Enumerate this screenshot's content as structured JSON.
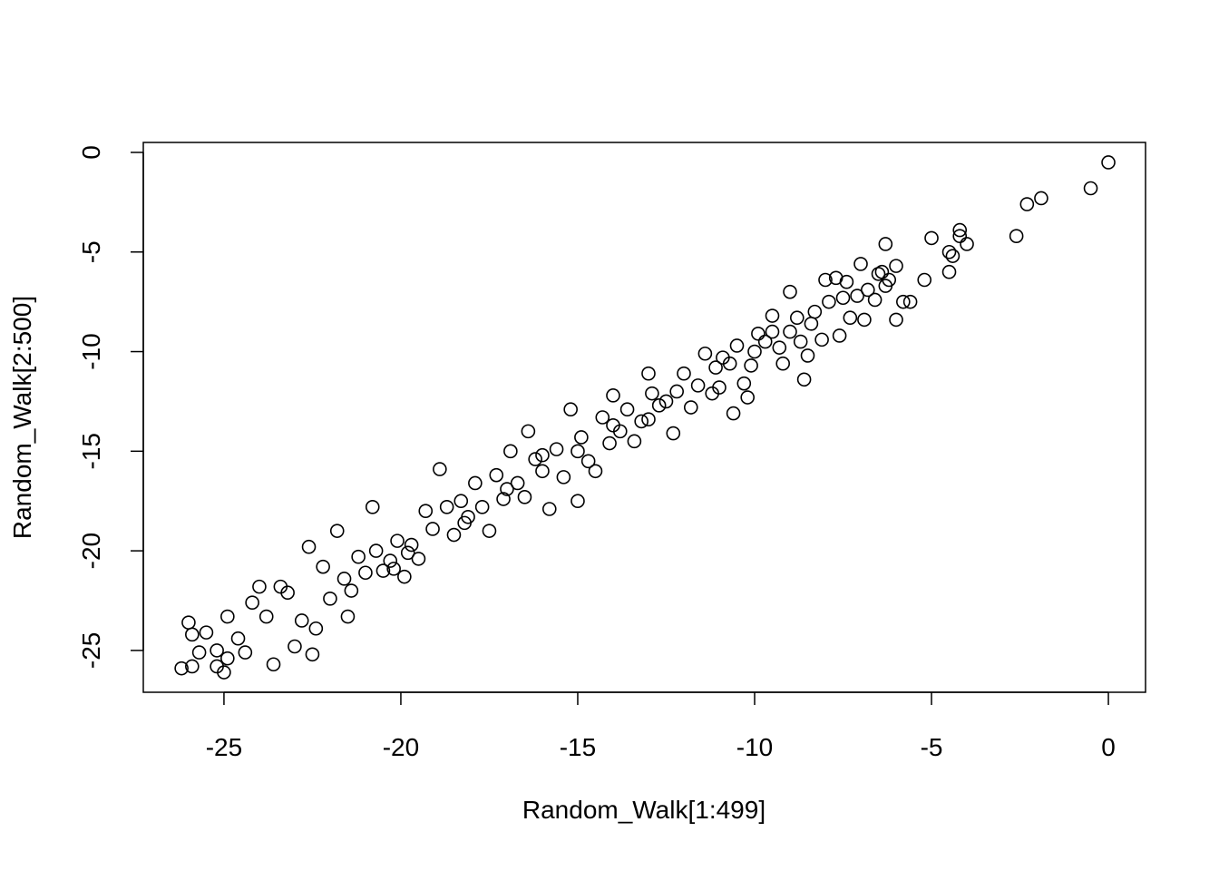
{
  "chart_data": {
    "type": "scatter",
    "xlabel": "Random_Walk[1:499]",
    "ylabel": "Random_Walk[2:500]",
    "xlim": [
      -27.28,
      1.05
    ],
    "ylim": [
      -27.1,
      0.5
    ],
    "xticks": [
      -25,
      -20,
      -15,
      -10,
      -5,
      0
    ],
    "yticks": [
      0,
      -5,
      -10,
      -15,
      -20,
      -25
    ],
    "color": "#000000",
    "x": [
      0,
      -0.5,
      -1.9,
      -2.3,
      -2.6,
      -4,
      -4.2,
      -4.2,
      -4.4,
      -4.5,
      -4.5,
      -5,
      -5.2,
      -5.6,
      -5.8,
      -6,
      -6,
      -6.2,
      -6.3,
      -6.3,
      -6.4,
      -6.5,
      -6.6,
      -6.8,
      -6.9,
      -7,
      -7.1,
      -7.3,
      -7.4,
      -7.5,
      -7.6,
      -7.7,
      -7.9,
      -8,
      -8.1,
      -8.3,
      -8.4,
      -8.5,
      -8.6,
      -8.7,
      -8.8,
      -9,
      -9,
      -9.2,
      -9.3,
      -9.5,
      -9.7,
      -9.9,
      -10.1,
      -10.2,
      -10.3,
      -10.5,
      -10.6,
      -10.7,
      -10.9,
      -11.1,
      -11.2,
      -11.4,
      -11.6,
      -11.8,
      -12,
      -12.2,
      -12.3,
      -12.5,
      -12.7,
      -12.9,
      -13,
      -13.2,
      -13.4,
      -13.6,
      -13.8,
      -14,
      -14.1,
      -14.3,
      -14.5,
      -14.7,
      -14.9,
      -15,
      -15.2,
      -15.4,
      -15.6,
      -15.8,
      -16,
      -16.2,
      -16.4,
      -16.5,
      -16.7,
      -16.9,
      -17.1,
      -17.3,
      -17.5,
      -17.7,
      -17.9,
      -18.1,
      -18.3,
      -18.5,
      -18.7,
      -18.9,
      -19.1,
      -19.3,
      -19.5,
      -19.7,
      -19.9,
      -20.1,
      -20.3,
      -20.5,
      -20.7,
      -20.8,
      -21,
      -21.2,
      -21.4,
      -21.6,
      -21.8,
      -22,
      -22.2,
      -22.4,
      -22.5,
      -22.6,
      -22.8,
      -23,
      -23.2,
      -23.4,
      -23.6,
      -23.8,
      -24,
      -24.2,
      -24.4,
      -24.6,
      -24.9,
      -25.2,
      -25.5,
      -25.7,
      -25.9,
      -26,
      -26.2,
      -25,
      -24.9,
      -25.9,
      -25.2,
      -21.5,
      -20.2,
      -19.8,
      -18.2,
      -17,
      -16,
      -15,
      -14,
      -13,
      -11,
      -10,
      -9.5
    ],
    "y": [
      -0.5,
      -1.8,
      -2.3,
      -2.6,
      -4.2,
      -4.6,
      -4.2,
      -3.9,
      -5.2,
      -5,
      -6,
      -4.3,
      -6.4,
      -7.5,
      -7.5,
      -8.4,
      -5.7,
      -6.4,
      -6.7,
      -4.6,
      -6,
      -6.1,
      -7.4,
      -6.9,
      -8.4,
      -5.6,
      -7.2,
      -8.3,
      -6.5,
      -7.3,
      -9.2,
      -6.3,
      -7.5,
      -6.4,
      -9.4,
      -8,
      -8.6,
      -10.2,
      -11.4,
      -9.5,
      -8.3,
      -7,
      -9,
      -10.6,
      -9.8,
      -8.2,
      -9.5,
      -9.1,
      -10.7,
      -12.3,
      -11.6,
      -9.7,
      -13.1,
      -10.6,
      -10.3,
      -10.8,
      -12.1,
      -10.1,
      -11.7,
      -12.8,
      -11.1,
      -12,
      -14.1,
      -12.5,
      -12.7,
      -12.1,
      -11.1,
      -13.5,
      -14.5,
      -12.9,
      -14,
      -12.2,
      -14.6,
      -13.3,
      -16,
      -15.5,
      -14.3,
      -17.5,
      -12.9,
      -16.3,
      -14.9,
      -17.9,
      -16,
      -15.4,
      -14,
      -17.3,
      -16.6,
      -15,
      -17.4,
      -16.2,
      -19,
      -17.8,
      -16.6,
      -18.3,
      -17.5,
      -19.2,
      -17.8,
      -15.9,
      -18.9,
      -18,
      -20.4,
      -19.7,
      -21.3,
      -19.5,
      -20.5,
      -21,
      -20,
      -17.8,
      -21.1,
      -20.3,
      -22,
      -21.4,
      -19,
      -22.4,
      -20.8,
      -23.9,
      -25.2,
      -19.8,
      -23.5,
      -24.8,
      -22.1,
      -21.8,
      -25.7,
      -23.3,
      -21.8,
      -22.6,
      -25.1,
      -24.4,
      -23.3,
      -25,
      -24.1,
      -25.1,
      -24.2,
      -23.6,
      -25.9,
      -26.1,
      -25.4,
      -25.8,
      -25.8,
      -23.3,
      -20.9,
      -20.1,
      -18.6,
      -16.9,
      -15.2,
      -15,
      -13.7,
      -13.4,
      -11.8,
      -10,
      -9
    ]
  }
}
